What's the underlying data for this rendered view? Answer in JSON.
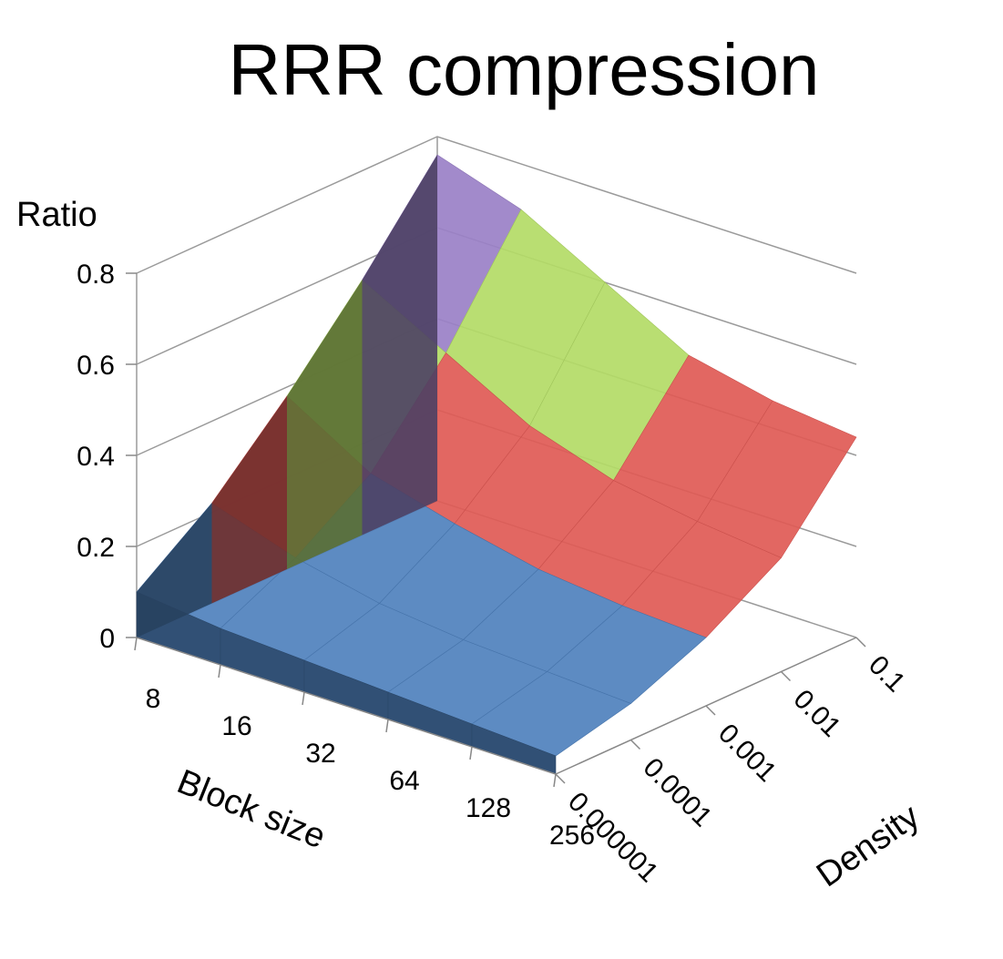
{
  "chart_data": {
    "type": "surface",
    "title": "RRR compression",
    "zlabel": "Ratio",
    "xlabel": "Block size",
    "ylabel": "Density",
    "zlim": [
      0,
      0.8
    ],
    "z_ticks": [
      "0",
      "0.2",
      "0.4",
      "0.6",
      "0.8"
    ],
    "block_sizes": [
      "8",
      "16",
      "32",
      "64",
      "128",
      "256"
    ],
    "densities": [
      "0.000001",
      "0.0001",
      "0.001",
      "0.01",
      "0.1"
    ],
    "ratio": [
      [
        0.1,
        0.08,
        0.07,
        0.06,
        0.05,
        0.04
      ],
      [
        0.22,
        0.16,
        0.12,
        0.1,
        0.09,
        0.08
      ],
      [
        0.38,
        0.27,
        0.22,
        0.18,
        0.16,
        0.15
      ],
      [
        0.56,
        0.46,
        0.36,
        0.3,
        0.27,
        0.25
      ],
      [
        0.76,
        0.7,
        0.6,
        0.5,
        0.46,
        0.44
      ]
    ],
    "color_bands": [
      {
        "range": "0-0.2",
        "color": "#4f81bd"
      },
      {
        "range": "0.2-0.4",
        "color": "#e05a55"
      },
      {
        "range": "0.4-0.6",
        "color": "#b3db66"
      },
      {
        "range": "0.6-0.8",
        "color": "#9a80c7"
      }
    ],
    "grid": true,
    "legend": "none"
  }
}
